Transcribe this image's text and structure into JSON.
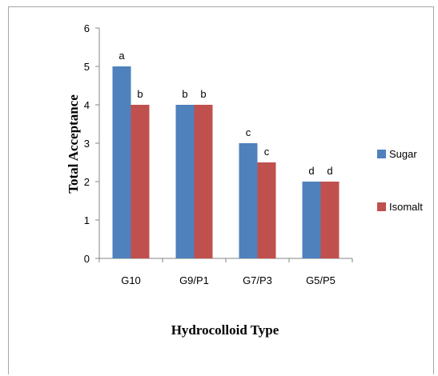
{
  "chart_data": {
    "type": "bar",
    "title": "",
    "xlabel": "Hydrocolloid Type",
    "ylabel": "Total Acceptance",
    "ylim": [
      0,
      6
    ],
    "yticks": [
      "0",
      "1",
      "2",
      "3",
      "4",
      "5",
      "6"
    ],
    "categories": [
      "G10",
      "G9/P1",
      "G7/P3",
      "G5/P5"
    ],
    "series": [
      {
        "name": "Sugar",
        "color": "#4F81BD",
        "values": [
          5,
          4,
          3,
          2
        ],
        "labels": [
          "a",
          "b",
          "c",
          "d"
        ]
      },
      {
        "name": "Isomalt",
        "color": "#C0504D",
        "values": [
          4,
          4,
          2.5,
          2
        ],
        "labels": [
          "b",
          "b",
          "c",
          "d"
        ]
      }
    ],
    "grid": false,
    "legend_position": "right"
  }
}
